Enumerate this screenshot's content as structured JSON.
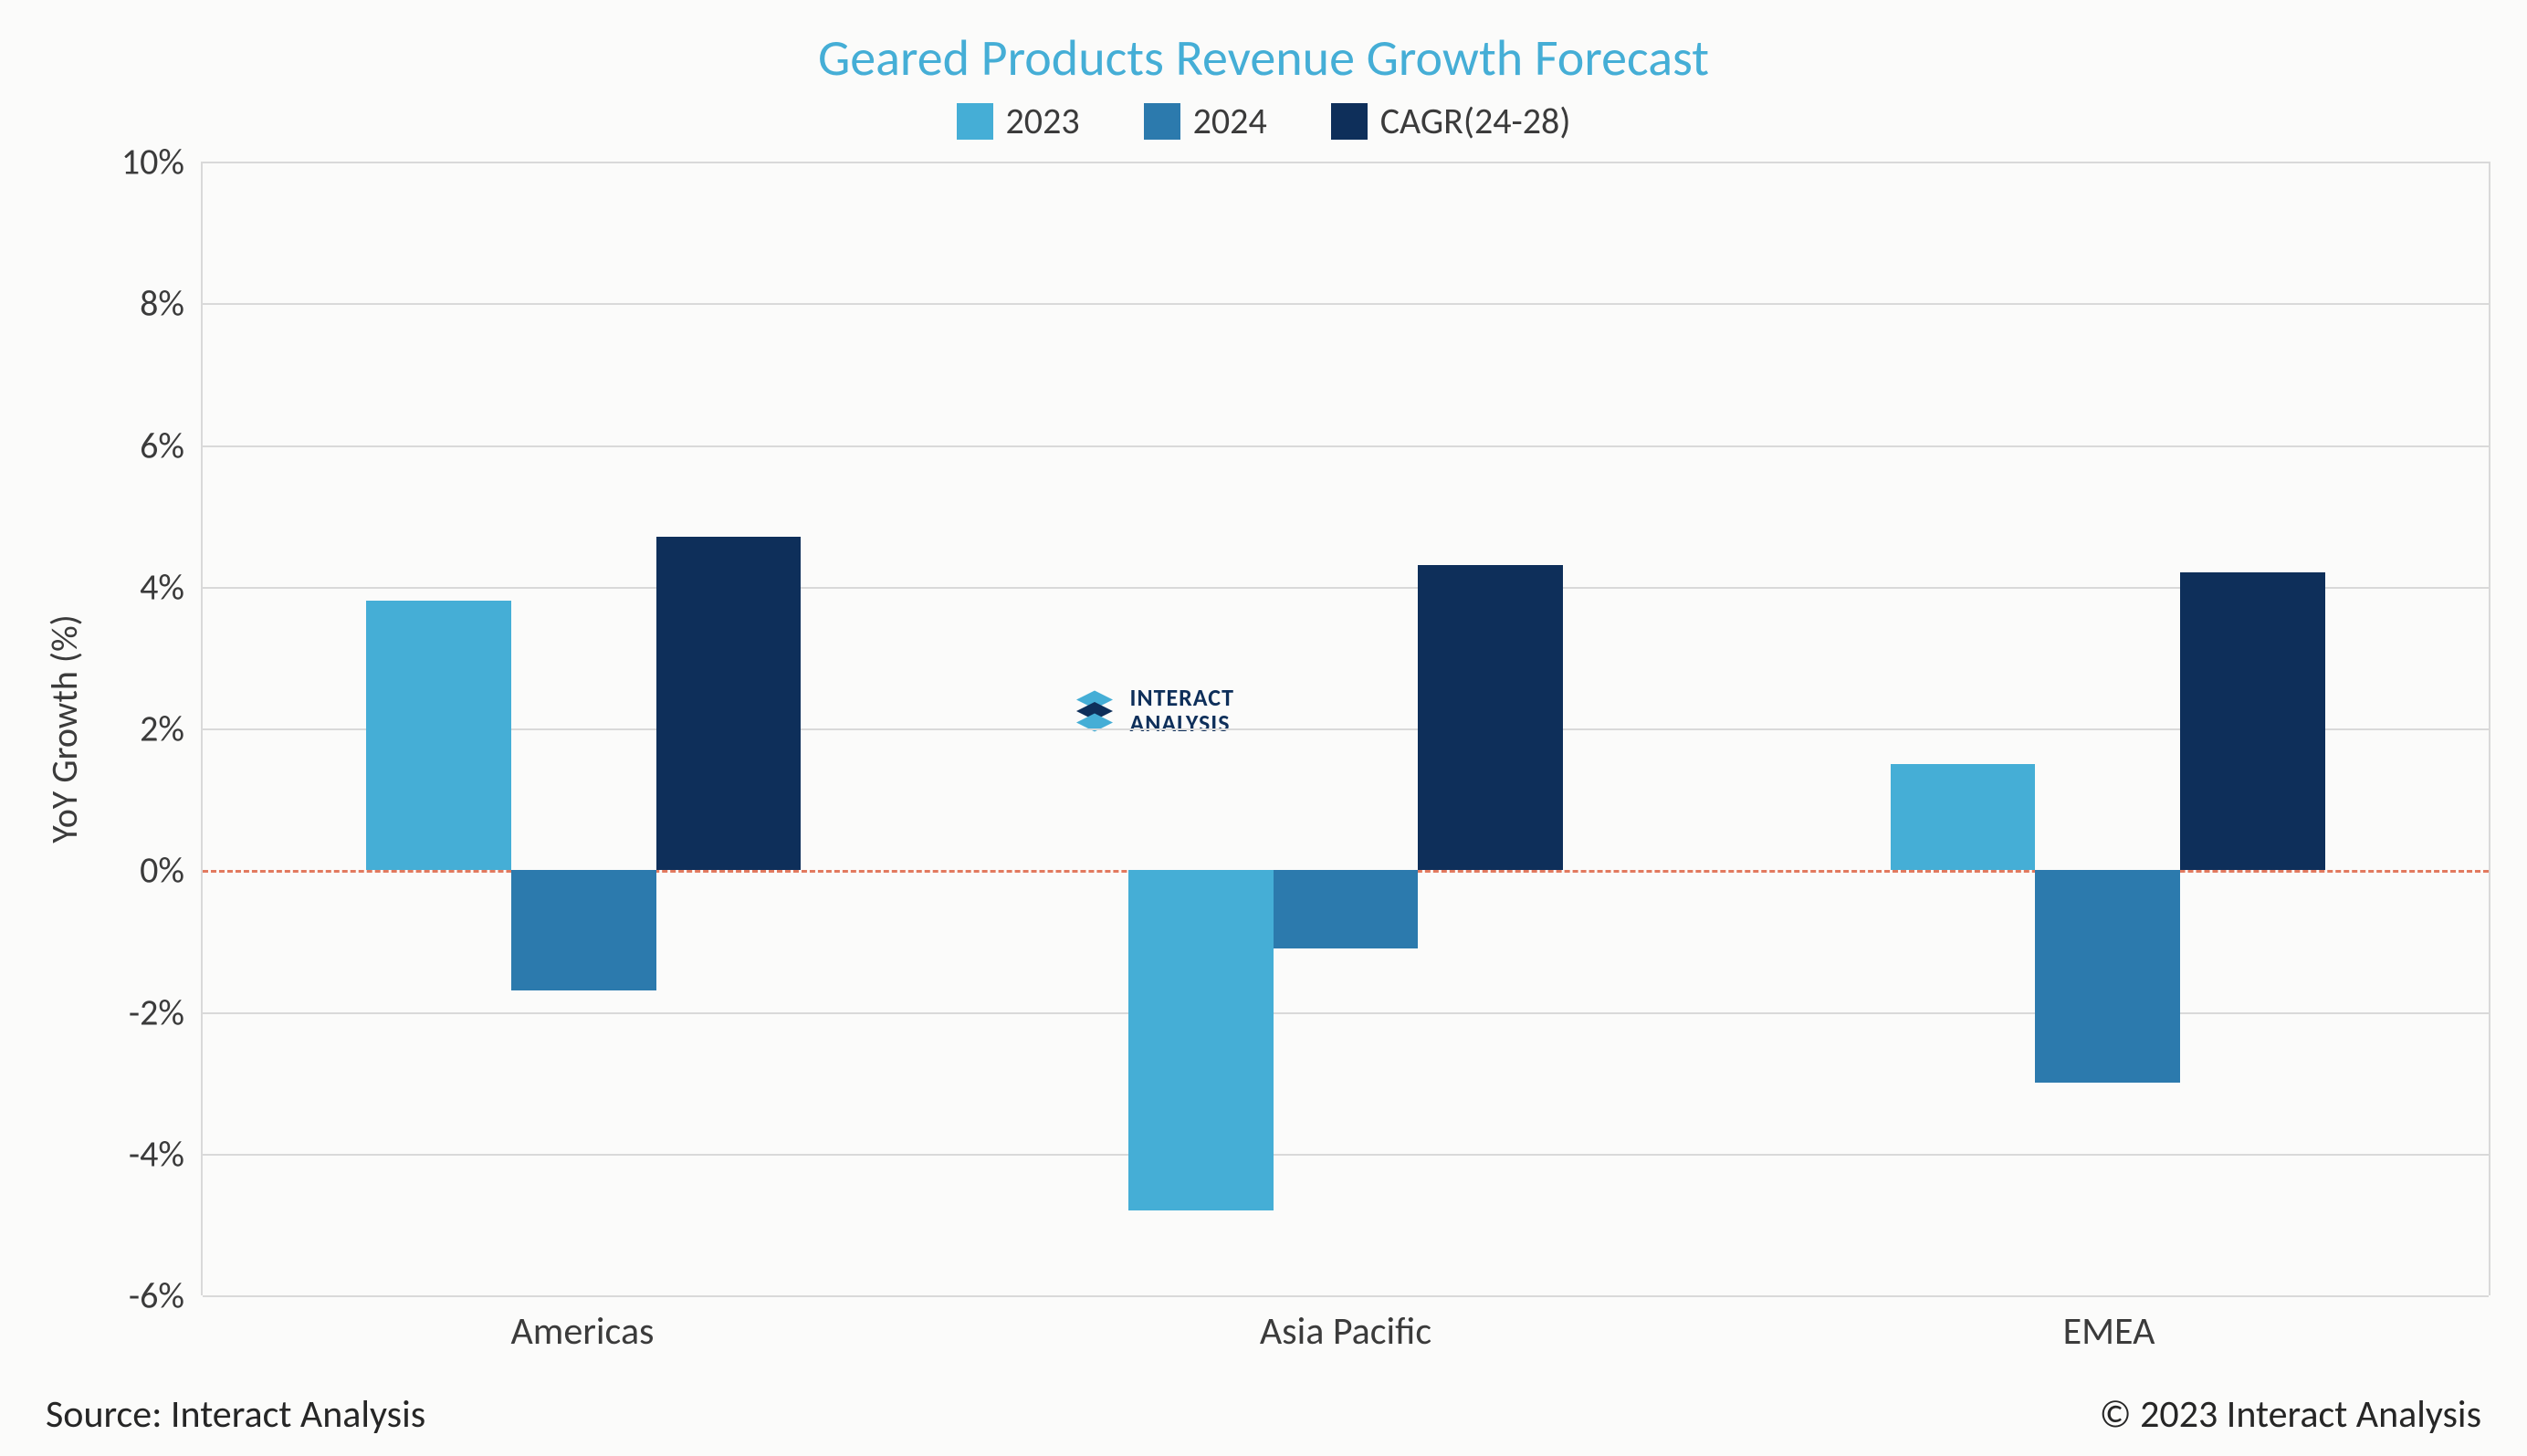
{
  "chart": {
    "type": "bar",
    "title": "Geared Products Revenue Growth Forecast",
    "title_color": "#45aed6",
    "title_fontsize": 56,
    "legend": {
      "fontsize": 40,
      "text_color": "#3b3b3b",
      "items": [
        {
          "label": "2023",
          "color": "#45aed6"
        },
        {
          "label": "2024",
          "color": "#2c7aad"
        },
        {
          "label": "CAGR(24-28)",
          "color": "#0e2f5a"
        }
      ]
    },
    "yaxis": {
      "title": "YoY Growth (%)",
      "fontsize": 40,
      "text_color": "#3b3b3b",
      "min": -6,
      "max": 10,
      "step": 2,
      "ticks": [
        "-6%",
        "-4%",
        "-2%",
        "0%",
        "2%",
        "4%",
        "6%",
        "8%",
        "10%"
      ],
      "grid_color": "#d9d9d9",
      "zero_line_color": "#e27a5f"
    },
    "xaxis": {
      "fontsize": 42,
      "text_color": "#3b3b3b",
      "categories": [
        "Americas",
        "Asia Pacific",
        "EMEA"
      ]
    },
    "series": [
      {
        "name": "2023",
        "color": "#45aed6",
        "values": [
          3.8,
          -4.8,
          1.5
        ]
      },
      {
        "name": "2024",
        "color": "#2c7aad",
        "values": [
          -1.7,
          -1.1,
          -3.0
        ]
      },
      {
        "name": "CAGR(24-28)",
        "color": "#0e2f5a",
        "values": [
          4.7,
          4.3,
          4.2
        ]
      }
    ],
    "bar_width_pct": 19,
    "background_color": "#fbfbfa",
    "watermark": {
      "line1": "INTERACT",
      "line2": "ANALYSIS",
      "color": "#0e2f5a",
      "icon_color_a": "#45aed6",
      "icon_color_b": "#0e2f5a",
      "fontsize": 26
    }
  },
  "footer": {
    "source": "Source: Interact Analysis",
    "copyright": "© 2023 Interact Analysis",
    "fontsize": 42,
    "color": "#262626"
  }
}
